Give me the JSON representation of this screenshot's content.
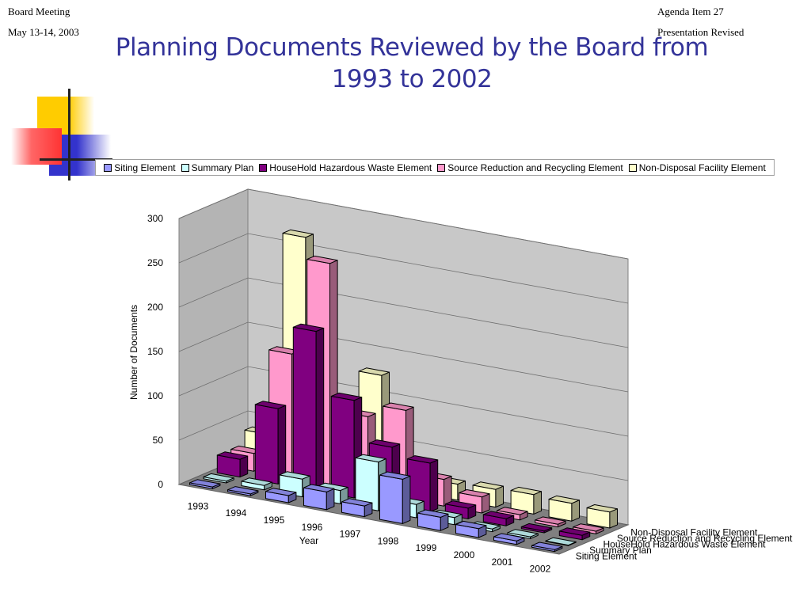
{
  "header": {
    "left_line1": "Board Meeting",
    "left_line2": "May 13-14, 2003",
    "right_line1": "Agenda Item 27",
    "right_line2": "Presentation Revised"
  },
  "title": {
    "line1": "Planning Documents Reviewed by the Board from",
    "line2": "1993 to 2002"
  },
  "colors": {
    "title": "#333399",
    "deco_yellow": "#ffcc00",
    "deco_red": "#ff3333",
    "deco_blue": "#3333cc",
    "floor": "#808080",
    "walls": "#c0c0c0"
  },
  "chart_data": {
    "type": "bar",
    "subtype": "3d-column",
    "categories": [
      "1993",
      "1994",
      "1995",
      "1996",
      "1997",
      "1998",
      "1999",
      "2000",
      "2001",
      "2002"
    ],
    "series": [
      {
        "name": "Siting Element",
        "color": "#9999ff",
        "values": [
          2,
          2,
          8,
          20,
          12,
          50,
          15,
          10,
          4,
          2
        ]
      },
      {
        "name": "Summary Plan",
        "color": "#ccffff",
        "values": [
          2,
          5,
          20,
          15,
          55,
          15,
          8,
          3,
          2,
          0
        ]
      },
      {
        "name": "HouseHold Hazardous Waste Element",
        "color": "#800080",
        "values": [
          20,
          85,
          180,
          110,
          65,
          55,
          12,
          8,
          2,
          5
        ]
      },
      {
        "name": "Source Reduction and Recycling Element",
        "color": "#ff99cc",
        "values": [
          20,
          140,
          250,
          85,
          100,
          30,
          18,
          6,
          3,
          3
        ]
      },
      {
        "name": "Non-Disposal Facility Element",
        "color": "#ffffcc",
        "values": [
          35,
          265,
          20,
          125,
          20,
          18,
          20,
          22,
          20,
          18
        ]
      }
    ],
    "xlabel": "Year",
    "ylabel": "Number of Documents",
    "yticks": [
      "0",
      "50",
      "100",
      "150",
      "200",
      "250",
      "300"
    ],
    "ylim": [
      0,
      300
    ],
    "grid": true,
    "legend": "top"
  }
}
